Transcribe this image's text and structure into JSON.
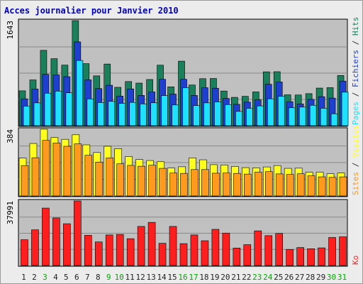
{
  "chart_data": {
    "type": "bar",
    "title": "Acces journalier pour Janvier 2010",
    "categories": [
      "1",
      "2",
      "3",
      "4",
      "5",
      "6",
      "7",
      "8",
      "9",
      "10",
      "11",
      "12",
      "13",
      "14",
      "15",
      "16",
      "17",
      "18",
      "19",
      "20",
      "21",
      "22",
      "23",
      "24",
      "25",
      "26",
      "27",
      "28",
      "29",
      "30",
      "31"
    ],
    "weekend_days": [
      "3",
      "9",
      "10",
      "16",
      "17",
      "23",
      "24",
      "30",
      "31"
    ],
    "panels": [
      {
        "name": "hits-panel",
        "ymax_label": "1643",
        "ymax": 1643,
        "legend": [
          "Pages",
          "Fichiers",
          "Hits"
        ],
        "series": [
          {
            "name": "Hits",
            "color": "#1a7f5b",
            "values": [
              545,
              716,
              1178,
              1048,
              947,
              1643,
              970,
              779,
              964,
              600,
              690,
              666,
              722,
              946,
              607,
              1009,
              636,
              735,
              738,
              542,
              443,
              459,
              528,
              842,
              844,
              483,
              480,
              501,
              588,
              595,
              785
            ]
          },
          {
            "name": "Fichiers",
            "color": "#1e3fd0",
            "values": [
              420,
              573,
              803,
              794,
              766,
              1310,
              717,
              580,
              632,
              463,
              575,
              473,
              528,
              725,
              494,
              725,
              473,
              594,
              586,
              426,
              334,
              368,
              404,
              648,
              684,
              375,
              340,
              411,
              453,
              432,
              697
            ]
          },
          {
            "name": "Pages",
            "color": "#1ee0ff",
            "values": [
              305,
              357,
              508,
              540,
              514,
              1020,
              418,
              362,
              380,
              348,
              364,
              340,
              358,
              471,
              324,
              594,
              315,
              357,
              371,
              330,
              223,
              272,
              309,
              420,
              458,
              280,
              291,
              319,
              272,
              186,
              524
            ]
          }
        ]
      },
      {
        "name": "visits-panel",
        "ymax_label": "384",
        "ymax": 384,
        "legend": [
          "Sites",
          "Visites"
        ],
        "series": [
          {
            "name": "Visites",
            "color": "#ffff1e",
            "values": [
              218,
              302,
              384,
              336,
              326,
              352,
              294,
              250,
              286,
              272,
              227,
              210,
              204,
              197,
              161,
              168,
              219,
              208,
              180,
              178,
              170,
              163,
              162,
              167,
              175,
              159,
              160,
              137,
              137,
              128,
              132
            ]
          },
          {
            "name": "Sites",
            "color": "#ff9a1e",
            "values": [
              175,
              220,
              320,
              305,
              286,
              300,
              234,
              195,
              219,
              185,
              176,
              171,
              177,
              159,
              132,
              130,
              152,
              152,
              131,
              132,
              130,
              126,
              137,
              140,
              127,
              124,
              128,
              116,
              110,
              107,
              110
            ]
          }
        ]
      },
      {
        "name": "kb-panel",
        "ymax_label": "37991",
        "ymax": 37991,
        "legend": [
          "Ko"
        ],
        "series": [
          {
            "name": "Ko",
            "color": "#ff1e1e",
            "values": [
              15200,
              21000,
              33800,
              28000,
              24600,
              37991,
              17800,
              13900,
              18000,
              18300,
              15800,
              23000,
              25400,
              13100,
              23000,
              12900,
              18000,
              14600,
              21300,
              19100,
              10300,
              12300,
              20400,
              17600,
              18900,
              9500,
              10600,
              9900,
              10400,
              16500,
              16900
            ]
          }
        ]
      }
    ],
    "label_colors": {
      "Pages": "#1ee0ff",
      "Fichiers": "#1e3fd0",
      "Hits": "#1a7f5b",
      "Sites": "#ff9a1e",
      "Visites": "#ffff1e",
      "Ko": "#ff1e1e",
      "separator": "#333333"
    },
    "title_color": "#0000c0",
    "weekday_label_color": "#222222",
    "weekend_label_color": "#00aa00",
    "plot_background": "#c0c0c0",
    "outer_background": "#ececec",
    "grid": true
  }
}
